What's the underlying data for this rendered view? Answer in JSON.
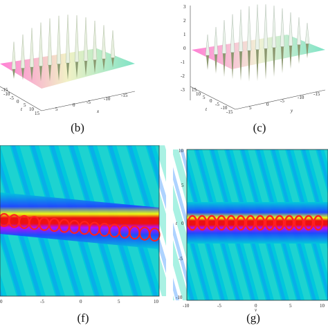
{
  "captions": {
    "b": "(b)",
    "c": "(c)",
    "f": "(f)",
    "g": "(g)"
  },
  "panel_b": {
    "x_axis_label": "x",
    "t_axis_label": "t",
    "x_ticks": [
      "5",
      "0",
      "-5",
      "-10",
      "-15"
    ],
    "t_ticks": [
      "-15",
      "-10",
      "-5",
      "0",
      "5",
      "10",
      "15"
    ]
  },
  "panel_c": {
    "z_ticks": [
      "3",
      "2",
      "1",
      "0",
      "-1",
      "-2",
      "-3"
    ],
    "y_axis_label": "y",
    "t_axis_label": "t",
    "y_ticks": [
      "5",
      "0",
      "-5",
      "-10",
      "-15"
    ],
    "t_ticks": [
      "15",
      "10",
      "5",
      "0",
      "-5",
      "-10",
      "-15"
    ]
  },
  "panel_f": {
    "x_ticks": [
      "0",
      "-5",
      "0",
      "5",
      "10"
    ]
  },
  "panel_g": {
    "t_axis_label": "t",
    "y_axis_label": "y",
    "t_ticks": [
      "10",
      "5",
      "0",
      "-5",
      "-10"
    ],
    "y_ticks": [
      "-10",
      "-5",
      "0",
      "5",
      "10"
    ]
  },
  "colors": {
    "background_field": "#00c8dc",
    "band_outer": "#2040ff",
    "band_mid": "#ffff00",
    "band_core": "#ff0000",
    "band_magenta": "#c000ff"
  }
}
